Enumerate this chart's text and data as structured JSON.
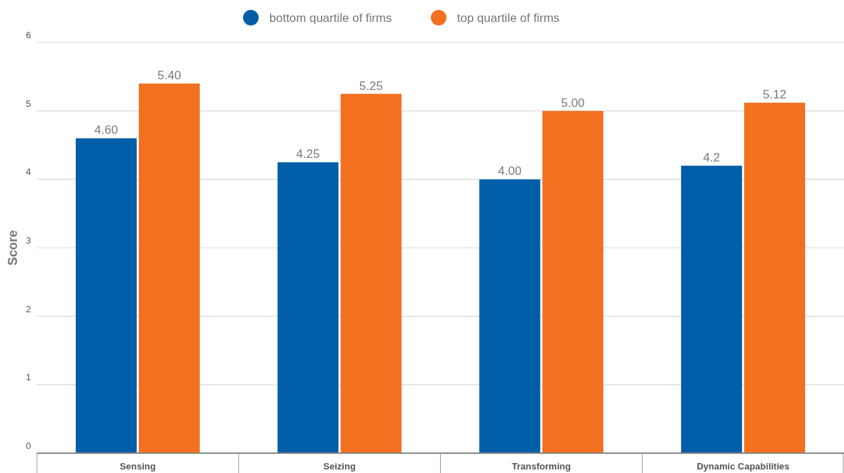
{
  "chart_data": {
    "type": "bar",
    "ylabel": "Score",
    "categories": [
      "Sensing",
      "Seizing",
      "Transforming",
      "Dynamic Capabilities"
    ],
    "series": [
      {
        "name": "bottom quartile of firms",
        "color": "#005ea8",
        "values": [
          4.6,
          4.25,
          4.0,
          4.2
        ],
        "value_labels": [
          "4.60",
          "4.25",
          "4.00",
          "4.2"
        ]
      },
      {
        "name": "top quartile of firms",
        "color": "#f37021",
        "values": [
          5.4,
          5.25,
          5.0,
          5.12
        ],
        "value_labels": [
          "5.40",
          "5.25",
          "5.00",
          "5.12"
        ]
      }
    ],
    "ylim": [
      0,
      6
    ],
    "yticks": [
      0,
      1,
      2,
      3,
      4,
      5,
      6
    ],
    "grid": "y",
    "legend": "top"
  }
}
